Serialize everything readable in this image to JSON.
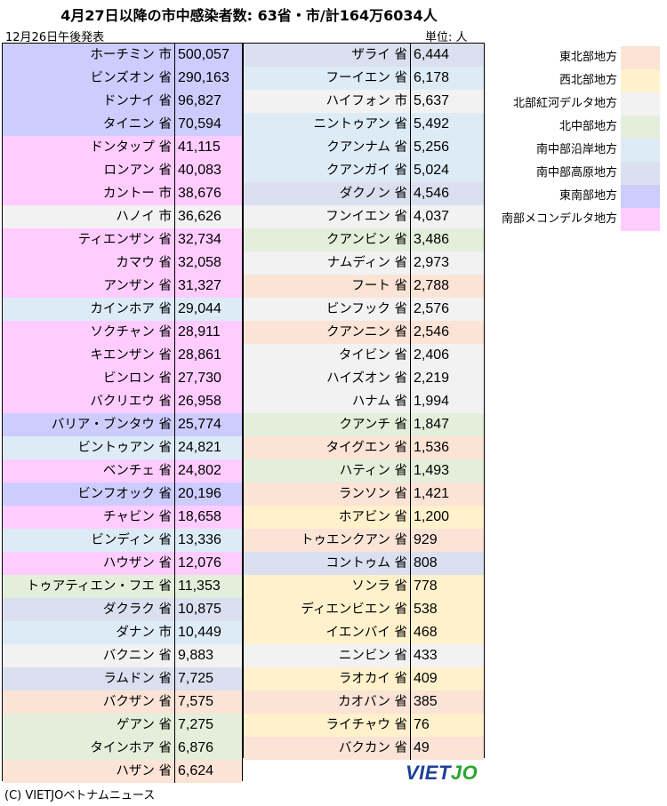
{
  "header": {
    "title": "4月27日以降の市中感染者数: 63省・市/計164万6034人",
    "date_note": "12月26日午後発表",
    "unit_note": "単位: 人"
  },
  "legend": [
    {
      "label": "東北部地方",
      "color": "#fbe3d6"
    },
    {
      "label": "西北部地方",
      "color": "#fff1cc"
    },
    {
      "label": "北部紅河デルタ地方",
      "color": "#f2f2f2"
    },
    {
      "label": "北中部地方",
      "color": "#e3efda"
    },
    {
      "label": "南中部沿岸地方",
      "color": "#ddebf7"
    },
    {
      "label": "南中部高原地方",
      "color": "#dae0ef"
    },
    {
      "label": "東南部地方",
      "color": "#ccccff"
    },
    {
      "label": "南部メコンデルタ地方",
      "color": "#ffccff"
    }
  ],
  "chart_data": {
    "type": "table",
    "columns": [
      "省・市",
      "感染者数"
    ],
    "rows": [
      {
        "name": "ホーチミン 市",
        "value": "500,057",
        "region": 6
      },
      {
        "name": "ビンズオン 省",
        "value": "290,163",
        "region": 6
      },
      {
        "name": "ドンナイ 省",
        "value": "96,827",
        "region": 6
      },
      {
        "name": "タイニン 省",
        "value": "70,594",
        "region": 6
      },
      {
        "name": "ドンタップ 省",
        "value": "41,115",
        "region": 7
      },
      {
        "name": "ロンアン 省",
        "value": "40,083",
        "region": 7
      },
      {
        "name": "カントー 市",
        "value": "38,676",
        "region": 7
      },
      {
        "name": "ハノイ 市",
        "value": "36,626",
        "region": 2
      },
      {
        "name": "ティエンザン 省",
        "value": "32,734",
        "region": 7
      },
      {
        "name": "カマウ 省",
        "value": "32,058",
        "region": 7
      },
      {
        "name": "アンザン 省",
        "value": "31,327",
        "region": 7
      },
      {
        "name": "カインホア 省",
        "value": "29,044",
        "region": 4
      },
      {
        "name": "ソクチャン 省",
        "value": "28,911",
        "region": 7
      },
      {
        "name": "キエンザン 省",
        "value": "28,861",
        "region": 7
      },
      {
        "name": "ビンロン 省",
        "value": "27,730",
        "region": 7
      },
      {
        "name": "バクリエウ 省",
        "value": "26,958",
        "region": 7
      },
      {
        "name": "バリア・ブンタウ 省",
        "value": "25,774",
        "region": 6
      },
      {
        "name": "ビントゥアン 省",
        "value": "24,821",
        "region": 4
      },
      {
        "name": "ベンチェ 省",
        "value": "24,802",
        "region": 7
      },
      {
        "name": "ビンフオック 省",
        "value": "20,196",
        "region": 6
      },
      {
        "name": "チャビン 省",
        "value": "18,658",
        "region": 7
      },
      {
        "name": "ビンディン 省",
        "value": "13,336",
        "region": 4
      },
      {
        "name": "ハウザン 省",
        "value": "12,076",
        "region": 7
      },
      {
        "name": "トゥアティエン・フエ 省",
        "value": "11,353",
        "region": 3
      },
      {
        "name": "ダクラク 省",
        "value": "10,875",
        "region": 5
      },
      {
        "name": "ダナン 市",
        "value": "10,449",
        "region": 4
      },
      {
        "name": "バクニン 省",
        "value": "9,883",
        "region": 2
      },
      {
        "name": "ラムドン 省",
        "value": "7,725",
        "region": 5
      },
      {
        "name": "バクザン 省",
        "value": "7,575",
        "region": 0
      },
      {
        "name": "ゲアン 省",
        "value": "7,275",
        "region": 3
      },
      {
        "name": "タインホア 省",
        "value": "6,876",
        "region": 3
      },
      {
        "name": "ハザン 省",
        "value": "6,624",
        "region": 0
      },
      {
        "name": "ザライ 省",
        "value": "6,444",
        "region": 5
      },
      {
        "name": "フーイエン 省",
        "value": "6,178",
        "region": 4
      },
      {
        "name": "ハイフォン 市",
        "value": "5,637",
        "region": 2
      },
      {
        "name": "ニントゥアン 省",
        "value": "5,492",
        "region": 4
      },
      {
        "name": "クアンナム 省",
        "value": "5,256",
        "region": 4
      },
      {
        "name": "クアンガイ 省",
        "value": "5,024",
        "region": 4
      },
      {
        "name": "ダクノン 省",
        "value": "4,546",
        "region": 5
      },
      {
        "name": "フンイエン 省",
        "value": "4,037",
        "region": 2
      },
      {
        "name": "クアンビン 省",
        "value": "3,486",
        "region": 3
      },
      {
        "name": "ナムディン 省",
        "value": "2,973",
        "region": 2
      },
      {
        "name": "フート 省",
        "value": "2,788",
        "region": 0
      },
      {
        "name": "ビンフック 省",
        "value": "2,576",
        "region": 2
      },
      {
        "name": "クアンニン 省",
        "value": "2,546",
        "region": 0
      },
      {
        "name": "タイビン 省",
        "value": "2,406",
        "region": 2
      },
      {
        "name": "ハイズオン 省",
        "value": "2,219",
        "region": 2
      },
      {
        "name": "ハナム 省",
        "value": "1,994",
        "region": 2
      },
      {
        "name": "クアンチ 省",
        "value": "1,847",
        "region": 3
      },
      {
        "name": "タイグエン 省",
        "value": "1,536",
        "region": 0
      },
      {
        "name": "ハティン 省",
        "value": "1,493",
        "region": 3
      },
      {
        "name": "ランソン 省",
        "value": "1,421",
        "region": 0
      },
      {
        "name": "ホアビン 省",
        "value": "1,200",
        "region": 1
      },
      {
        "name": "トゥエンクアン 省",
        "value": "929",
        "region": 0
      },
      {
        "name": "コントゥム 省",
        "value": "808",
        "region": 5
      },
      {
        "name": "ソンラ 省",
        "value": "778",
        "region": 1
      },
      {
        "name": "ディエンビエン 省",
        "value": "538",
        "region": 1
      },
      {
        "name": "イエンバイ 省",
        "value": "468",
        "region": 1
      },
      {
        "name": "ニンビン 省",
        "value": "433",
        "region": 2
      },
      {
        "name": "ラオカイ 省",
        "value": "409",
        "region": 1
      },
      {
        "name": "カオバン 省",
        "value": "385",
        "region": 0
      },
      {
        "name": "ライチャウ 省",
        "value": "76",
        "region": 1
      },
      {
        "name": "バクカン 省",
        "value": "49",
        "region": 0
      }
    ]
  },
  "footer": {
    "logo_part1": "VIET",
    "logo_part2": "JO",
    "credit": "(C) VIETJOベトナムニュース"
  }
}
